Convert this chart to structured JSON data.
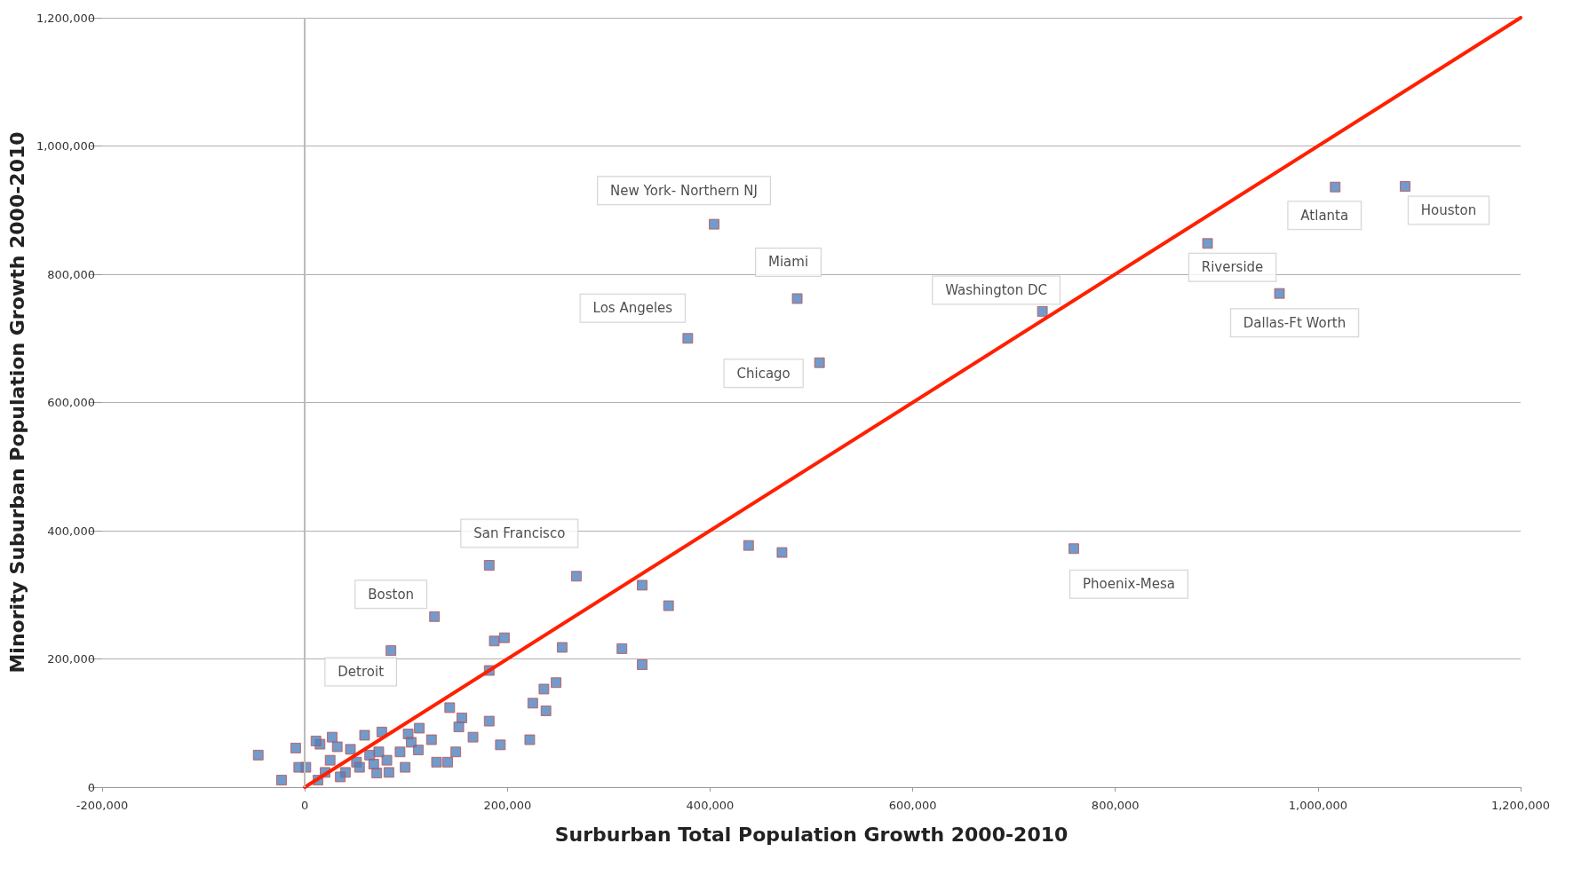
{
  "chart_data": {
    "type": "scatter",
    "xlabel": "Surburban Total Population Growth 2000-2010",
    "ylabel": "Minority Suburban Population Growth 2000-2010",
    "xlim": [
      -200000,
      1200000
    ],
    "xticks": [
      {
        "value": -200000,
        "label": "-200,000"
      },
      0,
      {
        "value": 200000,
        "label": "200,000"
      },
      {
        "value": 400000,
        "label": "400,000"
      },
      {
        "value": 600000,
        "label": "600,000"
      },
      {
        "value": 800000,
        "label": "800,000"
      },
      {
        "value": 1000000,
        "label": "1,000,000"
      },
      {
        "value": 1200000,
        "label": "1,200,000"
      }
    ],
    "ylim": [
      0,
      1200000
    ],
    "yticks": [
      0,
      {
        "value": 200000,
        "label": "200,000"
      },
      {
        "value": 400000,
        "label": "400,000"
      },
      {
        "value": 600000,
        "label": "600,000"
      },
      {
        "value": 800000,
        "label": "800,000"
      },
      {
        "value": 1000000,
        "label": "1,000,000"
      },
      {
        "value": 1200000,
        "label": "1,200,000"
      }
    ],
    "grid": "y",
    "marker": "square",
    "ref_lines": [
      {
        "axis": "x",
        "value": 0,
        "color": "#bbbbbb"
      }
    ],
    "series": [
      {
        "color": "#4f81bd",
        "x": [
          404000,
          486000,
          378000,
          508000,
          728000,
          1017000,
          1086000,
          891000,
          962000,
          759000,
          182000,
          128000,
          85000,
          268000,
          333000,
          359000,
          438000,
          471000,
          254000,
          313000,
          333000,
          187000,
          197000,
          182000,
          248000,
          236000,
          225000,
          238000,
          222000,
          193000,
          182000,
          143000,
          155000,
          152000,
          166000,
          149000,
          141000,
          130000,
          125000,
          113000,
          112000,
          102000,
          105000,
          99000,
          94000,
          81000,
          76000,
          73000,
          83000,
          71000,
          64000,
          59000,
          51000,
          45000,
          40000,
          32000,
          27000,
          25000,
          15000,
          11000,
          1000,
          -6000,
          -9000,
          -23000,
          -46000,
          20000,
          35000,
          54000,
          68000,
          13000
        ],
        "values": [
          878000,
          762000,
          700000,
          662000,
          742000,
          936000,
          937000,
          848000,
          770000,
          372000,
          346000,
          266000,
          213000,
          329000,
          315000,
          283000,
          377000,
          366000,
          218000,
          216000,
          191000,
          228000,
          233000,
          182000,
          163000,
          153000,
          131000,
          119000,
          74000,
          66000,
          103000,
          124000,
          108000,
          94000,
          78000,
          55000,
          39000,
          39000,
          74000,
          92000,
          58000,
          83000,
          70000,
          31000,
          55000,
          42000,
          86000,
          55000,
          23000,
          22000,
          50000,
          81000,
          39000,
          59000,
          23000,
          63000,
          78000,
          42000,
          67000,
          72000,
          31000,
          31000,
          61000,
          11000,
          50000,
          23000,
          16000,
          31000,
          36000,
          11000
        ]
      },
      {
        "type": "line",
        "color": "#ff2000",
        "x": [
          0,
          1200000
        ],
        "values": [
          0,
          1200000
        ],
        "marker": "none",
        "line_style": "solid"
      }
    ],
    "annotations": [
      {
        "text": "New York- Northern NJ",
        "x": 404000,
        "y": 878000
      },
      {
        "text": "Miami",
        "x": 486000,
        "y": 762000
      },
      {
        "text": "Los Angeles",
        "x": 378000,
        "y": 700000
      },
      {
        "text": "Chicago",
        "x": 508000,
        "y": 662000
      },
      {
        "text": "Washington DC",
        "x": 728000,
        "y": 742000
      },
      {
        "text": "Atlanta",
        "x": 1017000,
        "y": 936000
      },
      {
        "text": "Houston",
        "x": 1086000,
        "y": 937000
      },
      {
        "text": "Riverside",
        "x": 891000,
        "y": 848000
      },
      {
        "text": "Dallas-Ft Worth",
        "x": 962000,
        "y": 770000
      },
      {
        "text": "Phoenix-Mesa",
        "x": 759000,
        "y": 372000
      },
      {
        "text": "San Francisco",
        "x": 182000,
        "y": 346000
      },
      {
        "text": "Boston",
        "x": 128000,
        "y": 266000
      },
      {
        "text": "Detroit",
        "x": 85000,
        "y": 213000
      }
    ]
  }
}
